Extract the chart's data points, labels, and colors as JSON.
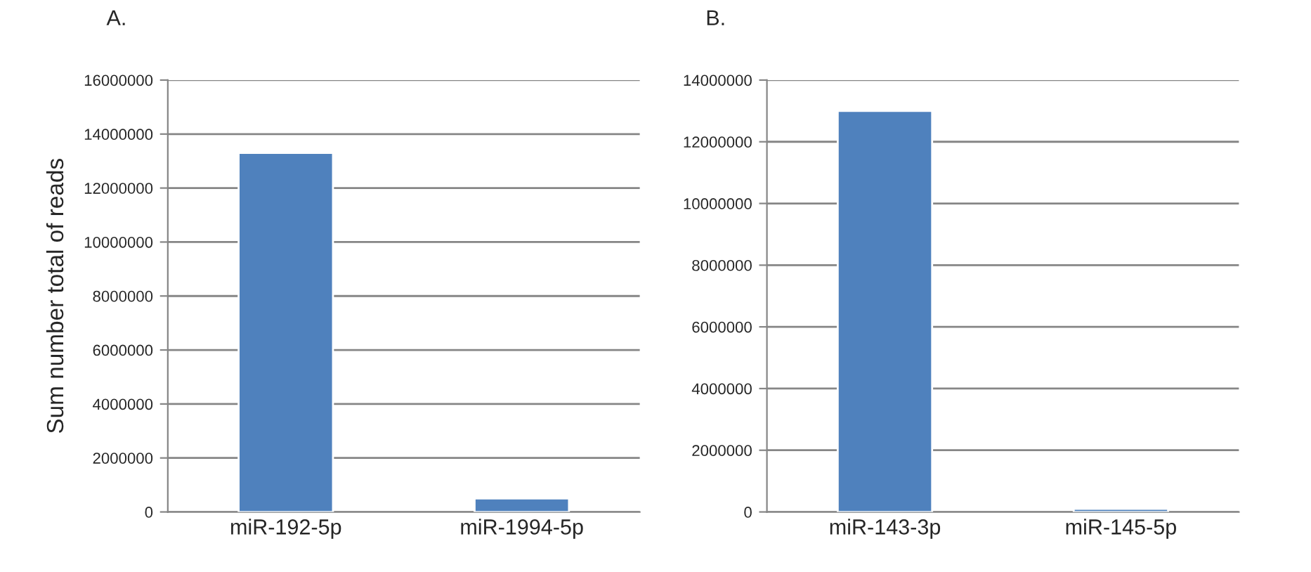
{
  "chart_data": [
    {
      "type": "bar",
      "title": "A.",
      "ylabel": "Sum number total of reads",
      "categories": [
        "miR-192-5p",
        "miR-1994-5p"
      ],
      "values": [
        13300000,
        500000
      ],
      "color": "#4f81bd",
      "ylim": [
        0,
        16000000
      ],
      "yticks": [
        0,
        2000000,
        4000000,
        6000000,
        8000000,
        10000000,
        12000000,
        14000000,
        16000000
      ],
      "grid": "y"
    },
    {
      "type": "bar",
      "title": "B.",
      "categories": [
        "miR-143-3p",
        "miR-145-5p"
      ],
      "values": [
        13000000,
        100000
      ],
      "color": "#4f81bd",
      "ylim": [
        0,
        14000000
      ],
      "yticks": [
        0,
        2000000,
        4000000,
        6000000,
        8000000,
        10000000,
        12000000,
        14000000
      ],
      "grid": "y"
    }
  ]
}
